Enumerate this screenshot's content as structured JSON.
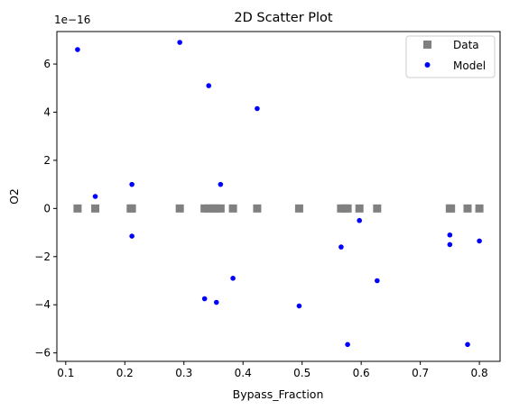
{
  "chart_data": {
    "type": "scatter",
    "title": "2D Scatter Plot",
    "xlabel": "Bypass_Fraction",
    "ylabel": "O2",
    "y_scale_label": "1e−16",
    "xlim": [
      0.085,
      0.835
    ],
    "ylim": [
      -6.35,
      7.35
    ],
    "xticks": [
      0.1,
      0.2,
      0.3,
      0.4,
      0.5,
      0.6,
      0.7,
      0.8
    ],
    "xtick_labels": [
      "0.1",
      "0.2",
      "0.3",
      "0.4",
      "0.5",
      "0.6",
      "0.7",
      "0.8"
    ],
    "yticks": [
      -6,
      -4,
      -2,
      0,
      2,
      4,
      6
    ],
    "ytick_labels": [
      "−6",
      "−4",
      "−2",
      "0",
      "2",
      "4",
      "6"
    ],
    "grid": false,
    "legend": {
      "placement": "top-right"
    },
    "series": [
      {
        "name": "Data",
        "marker": "square",
        "color": "#808080",
        "points": [
          [
            0.12,
            0
          ],
          [
            0.15,
            0
          ],
          [
            0.21,
            0
          ],
          [
            0.212,
            0
          ],
          [
            0.293,
            0
          ],
          [
            0.335,
            0
          ],
          [
            0.342,
            0
          ],
          [
            0.35,
            0
          ],
          [
            0.355,
            0
          ],
          [
            0.362,
            0
          ],
          [
            0.383,
            0
          ],
          [
            0.424,
            0
          ],
          [
            0.495,
            0
          ],
          [
            0.566,
            0
          ],
          [
            0.572,
            0
          ],
          [
            0.577,
            0
          ],
          [
            0.597,
            0
          ],
          [
            0.627,
            0
          ],
          [
            0.75,
            0
          ],
          [
            0.752,
            0
          ],
          [
            0.78,
            0
          ],
          [
            0.8,
            0
          ]
        ]
      },
      {
        "name": "Model",
        "marker": "circle",
        "color": "#0000ff",
        "points": [
          [
            0.12,
            6.6
          ],
          [
            0.15,
            0.5
          ],
          [
            0.212,
            1.0
          ],
          [
            0.212,
            -1.15
          ],
          [
            0.293,
            6.9
          ],
          [
            0.335,
            -3.75
          ],
          [
            0.342,
            5.1
          ],
          [
            0.355,
            -3.9
          ],
          [
            0.362,
            1.0
          ],
          [
            0.383,
            -2.9
          ],
          [
            0.424,
            4.15
          ],
          [
            0.495,
            -4.05
          ],
          [
            0.566,
            -1.6
          ],
          [
            0.577,
            -5.65
          ],
          [
            0.597,
            -0.5
          ],
          [
            0.627,
            -3.0
          ],
          [
            0.75,
            -1.1
          ],
          [
            0.75,
            -1.5
          ],
          [
            0.78,
            -5.65
          ],
          [
            0.8,
            -1.35
          ]
        ]
      }
    ]
  }
}
